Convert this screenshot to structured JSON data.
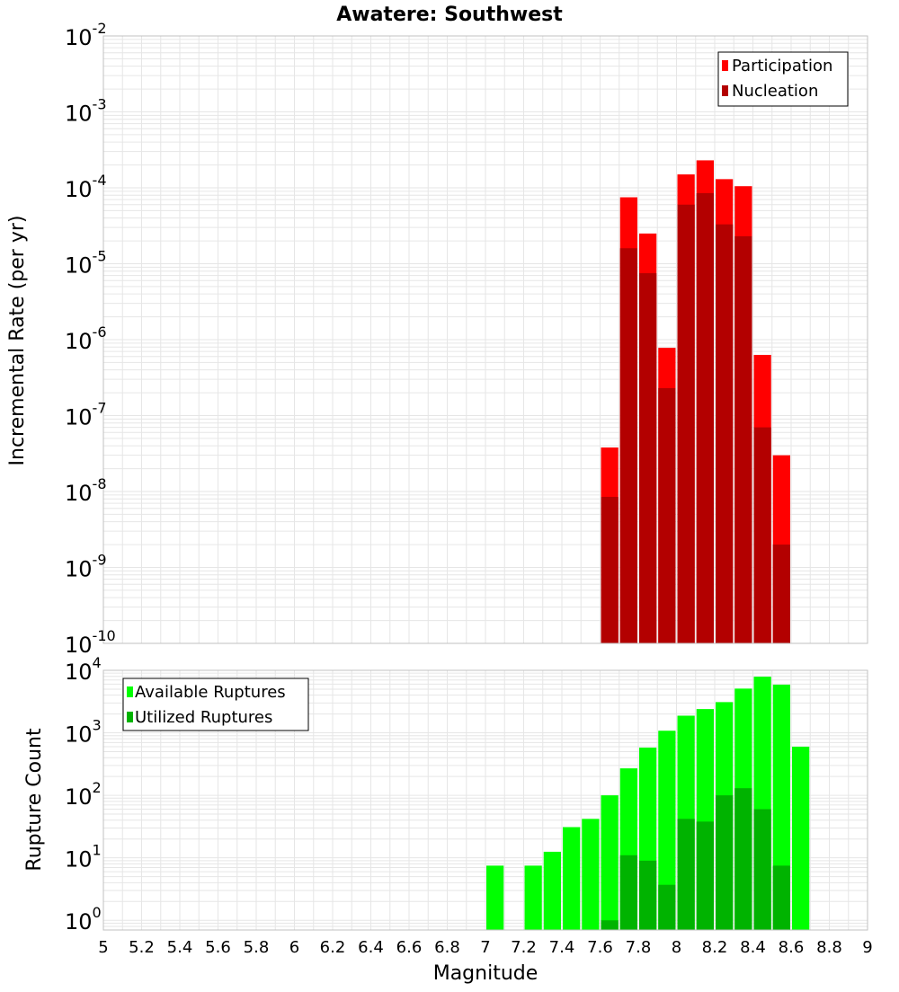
{
  "title": "Awatere: Southwest",
  "xlabel": "Magnitude",
  "colors": {
    "participation": "#ff0000",
    "nucleation": "#b30000",
    "available": "#00ff00",
    "utilized": "#00b300",
    "grid": "#e6e6e6",
    "frame": "#c0c0c0"
  },
  "chart_data": [
    {
      "type": "bar",
      "title": "Awatere: Southwest",
      "xlabel": "Magnitude",
      "ylabel": "Incremental Rate (per yr)",
      "yscale": "log",
      "xlim": [
        5,
        9
      ],
      "ylim": [
        1e-10,
        0.01
      ],
      "grid": true,
      "legend": "top-right",
      "x": [
        7.65,
        7.75,
        7.85,
        7.95,
        8.05,
        8.15,
        8.25,
        8.35,
        8.45,
        8.55
      ],
      "series": [
        {
          "name": "Participation",
          "values": [
            3.8e-08,
            7.5e-05,
            2.5e-05,
            7.8e-07,
            0.00015,
            0.00023,
            0.00013,
            0.000105,
            6.3e-07,
            3e-08
          ]
        },
        {
          "name": "Nucleation",
          "values": [
            8.5e-09,
            1.6e-05,
            7.5e-06,
            2.3e-07,
            6e-05,
            8.5e-05,
            3.3e-05,
            2.3e-05,
            7e-08,
            2e-09
          ]
        }
      ]
    },
    {
      "type": "bar",
      "xlabel": "Magnitude",
      "ylabel": "Rupture Count",
      "yscale": "log",
      "xlim": [
        5,
        9
      ],
      "ylim": [
        0.7,
        10000
      ],
      "grid": true,
      "legend": "top-left",
      "x": [
        7.05,
        7.15,
        7.25,
        7.35,
        7.45,
        7.55,
        7.65,
        7.75,
        7.85,
        7.95,
        8.05,
        8.15,
        8.25,
        8.35,
        8.45,
        8.55,
        8.65
      ],
      "series": [
        {
          "name": "Available Ruptures",
          "values": [
            7.5,
            0,
            7.5,
            12.5,
            31,
            42,
            100,
            270,
            580,
            1080,
            1880,
            2400,
            3100,
            5100,
            7900,
            5900,
            600
          ]
        },
        {
          "name": "Utilized Ruptures",
          "values": [
            0,
            0,
            0,
            0,
            0,
            0,
            1,
            11,
            9,
            3.7,
            42,
            38,
            100,
            130,
            60,
            7.5,
            0
          ]
        }
      ]
    }
  ],
  "x_ticks": [
    "5",
    "5.2",
    "5.4",
    "5.6",
    "5.8",
    "6",
    "6.2",
    "6.4",
    "6.6",
    "6.8",
    "7",
    "7.2",
    "7.4",
    "7.6",
    "7.8",
    "8",
    "8.2",
    "8.4",
    "8.6",
    "8.8",
    "9"
  ]
}
